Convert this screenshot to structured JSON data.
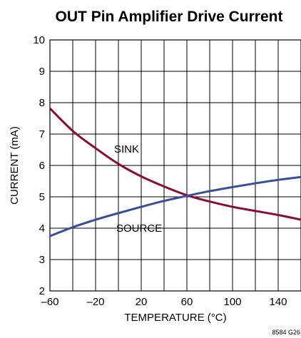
{
  "chart_data": {
    "type": "line",
    "title": "OUT Pin Amplifier Drive Current",
    "xlabel": "TEMPERATURE (°C)",
    "ylabel": "CURRENT (mA)",
    "xlim": [
      -60,
      160
    ],
    "ylim": [
      2,
      10
    ],
    "xticks": [
      -60,
      -20,
      20,
      60,
      100,
      140
    ],
    "yticks": [
      2,
      3,
      4,
      5,
      6,
      7,
      8,
      9,
      10
    ],
    "grid": true,
    "series": [
      {
        "name": "SINK",
        "color": "#8b0a3a",
        "x": [
          -60,
          -40,
          -20,
          0,
          20,
          40,
          60,
          80,
          100,
          120,
          140,
          160
        ],
        "y": [
          7.82,
          7.1,
          6.55,
          6.05,
          5.65,
          5.33,
          5.05,
          4.85,
          4.68,
          4.55,
          4.42,
          4.27
        ]
      },
      {
        "name": "SOURCE",
        "color": "#3a4e9c",
        "x": [
          -60,
          -40,
          -20,
          0,
          20,
          40,
          60,
          80,
          100,
          120,
          140,
          160
        ],
        "y": [
          3.75,
          4.03,
          4.27,
          4.48,
          4.68,
          4.87,
          5.03,
          5.18,
          5.31,
          5.43,
          5.54,
          5.63
        ]
      }
    ],
    "annotations": [
      "SINK",
      "SOURCE"
    ],
    "figure_code": "8584 G26"
  }
}
